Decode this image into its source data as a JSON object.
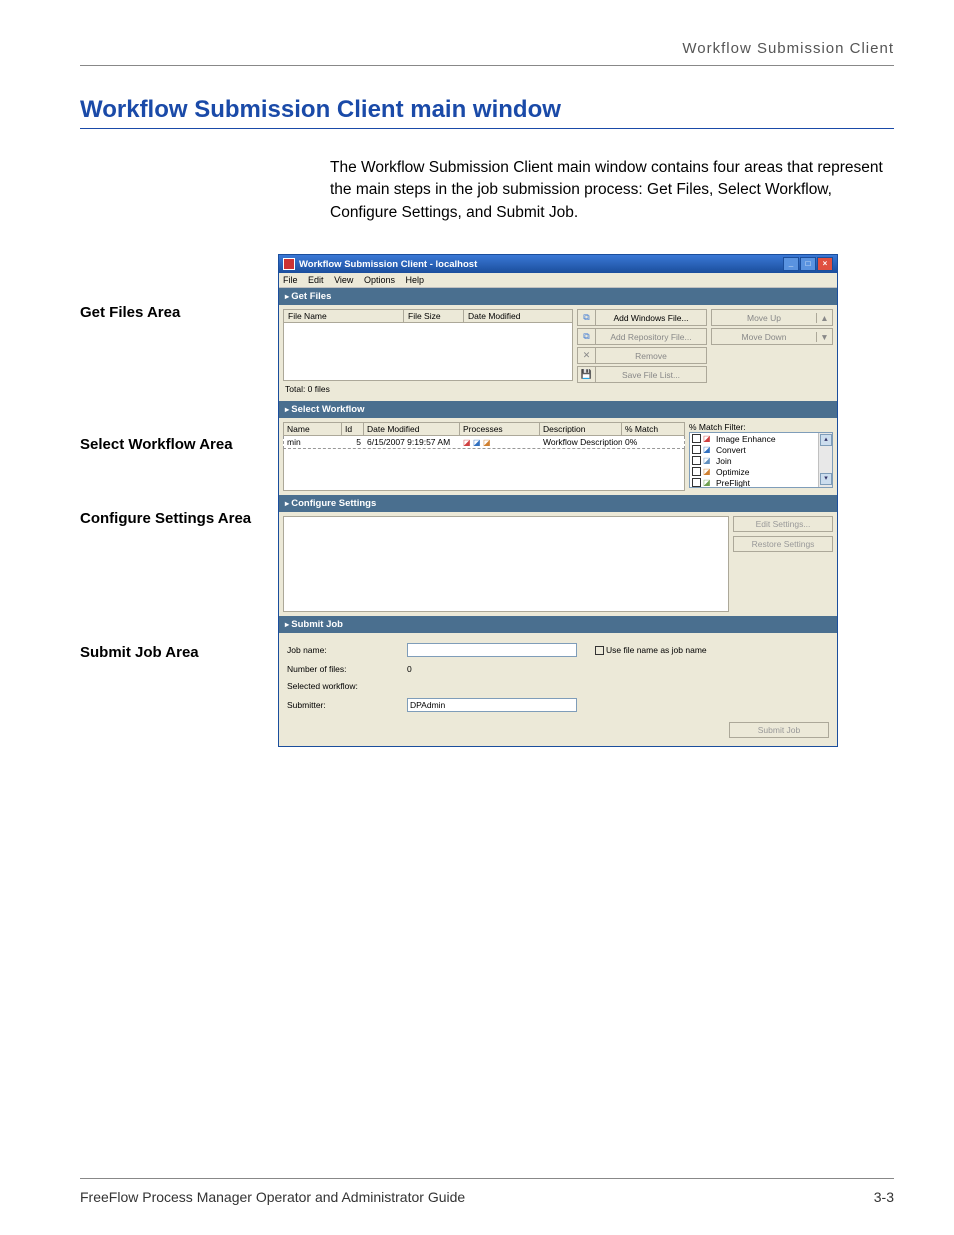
{
  "running_head": "Workflow Submission Client",
  "section_title": "Workflow Submission Client main window",
  "intro_text": "The Workflow Submission Client main window contains four areas that represent the main steps in the job submission process: Get Files, Select Workflow, Configure Settings, and Submit Job.",
  "labels": {
    "get_files": "Get Files Area",
    "select_workflow": "Select Workflow Area",
    "configure_settings": "Configure Settings Area",
    "submit_job": "Submit Job Area"
  },
  "app": {
    "titlebar": "Workflow Submission Client - localhost",
    "menu": {
      "file": "File",
      "edit": "Edit",
      "view": "View",
      "options": "Options",
      "help": "Help"
    },
    "sections": {
      "get_files": "Get Files",
      "select_workflow": "Select Workflow",
      "configure_settings": "Configure Settings",
      "submit_job": "Submit Job"
    },
    "file_table": {
      "cols": {
        "name": "File Name",
        "size": "File Size",
        "modified": "Date Modified"
      },
      "total": "Total: 0 files"
    },
    "file_buttons": {
      "add_win": "Add Windows File...",
      "add_repo": "Add Repository File...",
      "remove": "Remove",
      "save_list": "Save File List..."
    },
    "move": {
      "up": "Move Up",
      "down": "Move Down"
    },
    "wf_table": {
      "cols": {
        "name": "Name",
        "id": "Id",
        "modified": "Date Modified",
        "processes": "Processes",
        "desc": "Description",
        "match": "% Match"
      },
      "row": {
        "name": "min",
        "id": "5",
        "modified": "6/15/2007 9:19:57 AM",
        "desc": "Workflow Description",
        "match": "0%"
      }
    },
    "filter": {
      "label": "% Match Filter:",
      "items": [
        "Image Enhance",
        "Convert",
        "Join",
        "Optimize",
        "PreFlight"
      ],
      "icon_colors": [
        "#d04040",
        "#3070c0",
        "#6090c0",
        "#d08030",
        "#70a050"
      ]
    },
    "config": {
      "edit": "Edit Settings...",
      "restore": "Restore Settings"
    },
    "submit": {
      "job_name_l": "Job name:",
      "use_filename": "Use file name as job name",
      "num_files_l": "Number of files:",
      "num_files_v": "0",
      "sel_wf_l": "Selected workflow:",
      "submitter_l": "Submitter:",
      "submitter_v": "DPAdmin",
      "button": "Submit Job"
    }
  },
  "footer": {
    "left": "FreeFlow Process Manager Operator and Administrator Guide",
    "right": "3-3"
  },
  "colors": {
    "heading": "#1a4aa8",
    "bar": "#4a6f8f"
  }
}
